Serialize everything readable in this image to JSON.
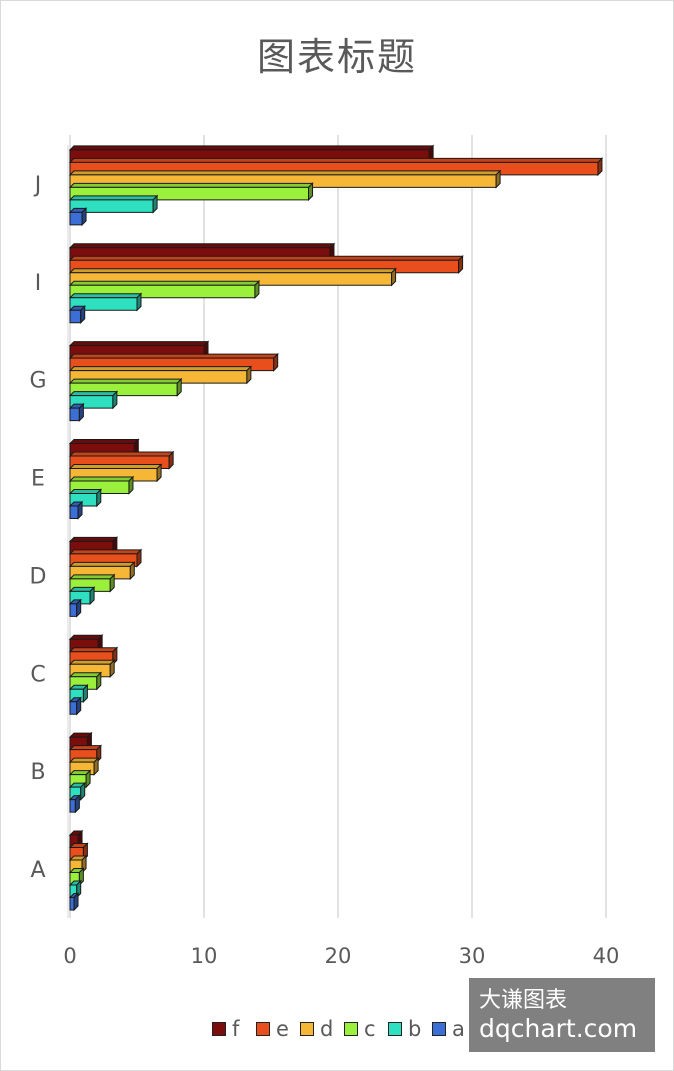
{
  "watermark": {
    "line1": "大谦图表",
    "line2": "dqchart.com"
  },
  "chart_data": {
    "type": "bar",
    "orientation": "horizontal",
    "style": "3d-clustered",
    "title": "图表标题",
    "categories": [
      "A",
      "B",
      "C",
      "D",
      "E",
      "G",
      "I",
      "J"
    ],
    "x_ticks": [
      0,
      10,
      20,
      30,
      40
    ],
    "xlim": [
      0,
      40
    ],
    "grid": "vertical",
    "legend_position": "bottom",
    "series": [
      {
        "name": "a",
        "color": "#3c6fd6",
        "values": [
          0.3,
          0.4,
          0.5,
          0.5,
          0.6,
          0.7,
          0.8,
          0.9
        ]
      },
      {
        "name": "b",
        "color": "#2fe0c0",
        "values": [
          0.5,
          0.8,
          1.0,
          1.5,
          2.0,
          3.2,
          5.0,
          6.2
        ]
      },
      {
        "name": "c",
        "color": "#9af03a",
        "values": [
          0.7,
          1.2,
          2.0,
          3.0,
          4.4,
          8.0,
          13.8,
          17.8
        ]
      },
      {
        "name": "d",
        "color": "#f5b735",
        "values": [
          0.9,
          1.8,
          3.0,
          4.5,
          6.5,
          13.2,
          24.0,
          31.8
        ]
      },
      {
        "name": "e",
        "color": "#e84f1d",
        "values": [
          1.0,
          2.0,
          3.2,
          5.0,
          7.4,
          15.2,
          29.0,
          39.4
        ]
      },
      {
        "name": "f",
        "color": "#7c0d0d",
        "values": [
          0.6,
          1.3,
          2.1,
          3.2,
          4.8,
          10.0,
          19.4,
          26.8
        ]
      }
    ]
  }
}
